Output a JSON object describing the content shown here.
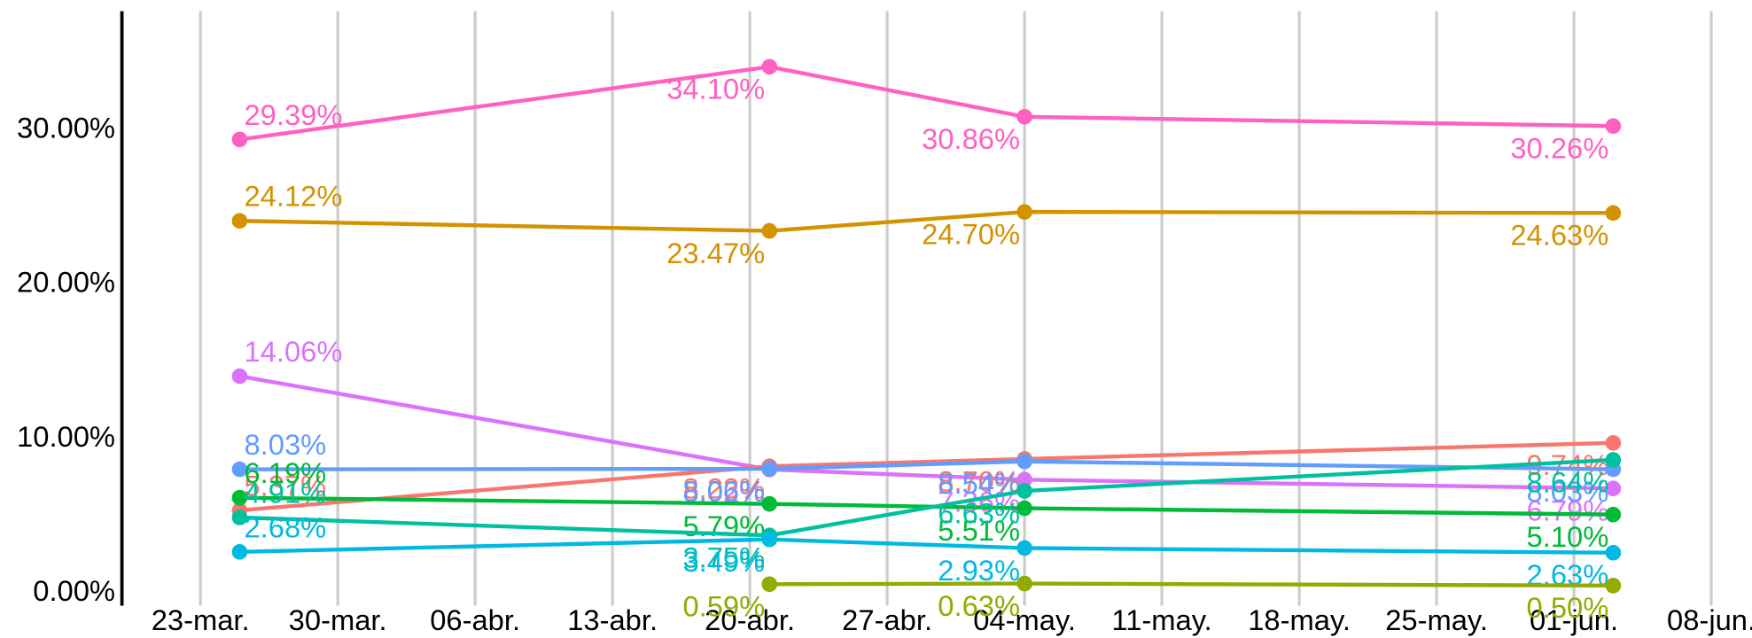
{
  "chart_data": {
    "type": "line",
    "x": [
      "03-25",
      "04-21",
      "05-04",
      "06-03"
    ],
    "xlim": [
      "03-19",
      "06-10"
    ],
    "xticks": [
      {
        "value": "03-23",
        "label": "23-mar."
      },
      {
        "value": "03-30",
        "label": "30-mar."
      },
      {
        "value": "04-06",
        "label": "06-abr."
      },
      {
        "value": "04-13",
        "label": "13-abr."
      },
      {
        "value": "04-20",
        "label": "20-abr."
      },
      {
        "value": "04-27",
        "label": "27-abr."
      },
      {
        "value": "05-04",
        "label": "04-may."
      },
      {
        "value": "05-11",
        "label": "11-may."
      },
      {
        "value": "05-18",
        "label": "18-may."
      },
      {
        "value": "05-25",
        "label": "25-may."
      },
      {
        "value": "06-01",
        "label": "01-jun."
      },
      {
        "value": "06-08",
        "label": "08-jun."
      }
    ],
    "ylim": [
      -0.8,
      37.7
    ],
    "yticks": [
      {
        "value": 0,
        "label": "0.00%"
      },
      {
        "value": 10,
        "label": "10.00%"
      },
      {
        "value": 20,
        "label": "20.00%"
      },
      {
        "value": 30,
        "label": "30.00%"
      }
    ],
    "grid": true,
    "series": [
      {
        "color": "#FF61C3",
        "values": [
          29.39,
          34.1,
          30.86,
          30.26
        ],
        "value_labels": [
          "29.39%",
          "34.10%",
          "30.86%",
          "30.26%"
        ]
      },
      {
        "color": "#D39200",
        "values": [
          24.12,
          23.47,
          24.7,
          24.63
        ],
        "value_labels": [
          "24.12%",
          "23.47%",
          "24.70%",
          "24.63%"
        ]
      },
      {
        "color": "#DB72FB",
        "values": [
          14.06,
          8.02,
          7.36,
          6.79
        ],
        "value_labels": [
          "14.06%",
          "8.02%",
          "7.36%",
          "6.79%"
        ]
      },
      {
        "color": "#F8766D",
        "values": [
          5.37,
          8.23,
          8.7,
          9.74
        ],
        "value_labels": [
          "5.37%",
          "8.23%",
          "8.70%",
          "9.74%"
        ]
      },
      {
        "color": "#619CFF",
        "values": [
          8.03,
          8.06,
          8.54,
          8.03
        ],
        "value_labels": [
          "8.03%",
          "8.06%",
          "8.54%",
          "8.03%"
        ]
      },
      {
        "color": "#00BA38",
        "values": [
          6.19,
          5.79,
          5.51,
          5.1
        ],
        "value_labels": [
          "6.19%",
          "5.79%",
          "5.51%",
          "5.10%"
        ]
      },
      {
        "color": "#00C19F",
        "values": [
          4.91,
          3.75,
          6.63,
          8.64
        ],
        "value_labels": [
          "4.91%",
          "3.75%",
          "6.63%",
          "8.64%"
        ]
      },
      {
        "color": "#00B9E3",
        "values": [
          2.68,
          3.49,
          2.93,
          2.63
        ],
        "value_labels": [
          "2.68%",
          "3.49%",
          "2.93%",
          "2.63%"
        ]
      },
      {
        "color": "#93AA00",
        "values": [
          null,
          0.59,
          0.63,
          0.5
        ],
        "value_labels": [
          null,
          "0.59%",
          "0.63%",
          "0.50%"
        ]
      }
    ]
  }
}
